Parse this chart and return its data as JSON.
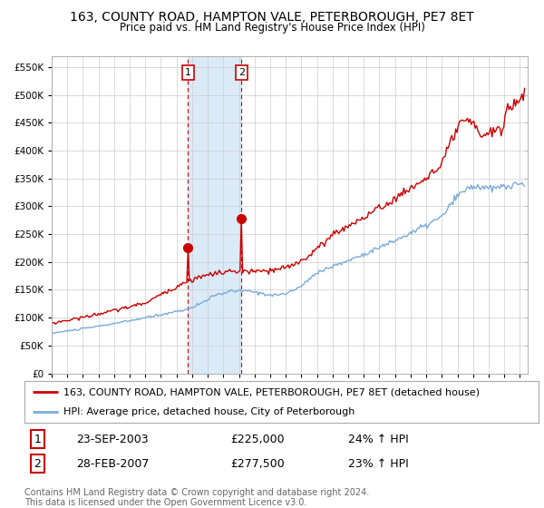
{
  "title": "163, COUNTY ROAD, HAMPTON VALE, PETERBOROUGH, PE7 8ET",
  "subtitle": "Price paid vs. HM Land Registry's House Price Index (HPI)",
  "ylim": [
    0,
    570000
  ],
  "yticks": [
    0,
    50000,
    100000,
    150000,
    200000,
    250000,
    300000,
    350000,
    400000,
    450000,
    500000,
    550000
  ],
  "ytick_labels": [
    "£0",
    "£50K",
    "£100K",
    "£150K",
    "£200K",
    "£250K",
    "£300K",
    "£350K",
    "£400K",
    "£450K",
    "£500K",
    "£550K"
  ],
  "red_line_color": "#cc0000",
  "blue_line_color": "#7aabda",
  "highlight_color": "#daeaf7",
  "vline_color": "#cc0000",
  "marker_color": "#cc0000",
  "background_color": "#ffffff",
  "grid_color": "#cccccc",
  "legend_label_red": "163, COUNTY ROAD, HAMPTON VALE, PETERBOROUGH, PE7 8ET (detached house)",
  "legend_label_blue": "HPI: Average price, detached house, City of Peterborough",
  "transaction1_date": "23-SEP-2003",
  "transaction1_price": 225000,
  "transaction1_hpi": "24% ↑ HPI",
  "transaction1_year": 2003.73,
  "transaction2_date": "28-FEB-2007",
  "transaction2_price": 277500,
  "transaction2_hpi": "23% ↑ HPI",
  "transaction2_year": 2007.16,
  "footer": "Contains HM Land Registry data © Crown copyright and database right 2024.\nThis data is licensed under the Open Government Licence v3.0.",
  "title_fontsize": 10,
  "subtitle_fontsize": 8.5,
  "tick_fontsize": 7.5,
  "legend_fontsize": 8,
  "table_fontsize": 9,
  "footer_fontsize": 7
}
